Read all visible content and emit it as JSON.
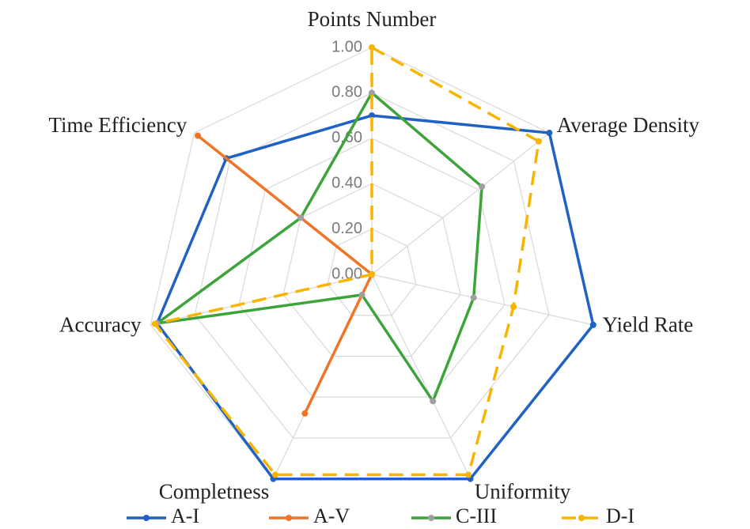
{
  "chart_data": {
    "type": "radar",
    "categories": [
      "Points Number",
      "Average Density",
      "Yield Rate",
      "Uniformity",
      "Completness",
      "Accuracy",
      "Time Efficiency"
    ],
    "series": [
      {
        "name": "A-I",
        "color": "#1f62c4",
        "marker_color": "#1f62c4",
        "line_style": "solid",
        "values": [
          0.7,
          1.0,
          1.0,
          1.0,
          1.0,
          0.97,
          0.82
        ]
      },
      {
        "name": "A-V",
        "color": "#f07426",
        "marker_color": "#f07426",
        "line_style": "solid",
        "values": [
          0,
          0,
          0,
          0,
          0.68,
          0,
          0.98
        ]
      },
      {
        "name": "C-III",
        "color": "#3ca43a",
        "marker_color": "#a0a0a0",
        "line_style": "solid",
        "values": [
          0.8,
          0.62,
          0.46,
          0.62,
          0.1,
          0.97,
          0.4
        ]
      },
      {
        "name": "D-I",
        "color": "#f7b500",
        "marker_color": "#f7b500",
        "line_style": "dashed",
        "values": [
          1.0,
          0.94,
          0.64,
          0.98,
          0.98,
          0.98,
          0
        ]
      }
    ],
    "rlim": [
      0,
      1
    ],
    "rticks": [
      {
        "value": 0,
        "label": "0.00"
      },
      {
        "value": 0.2,
        "label": "0.20"
      },
      {
        "value": 0.4,
        "label": "0.40"
      },
      {
        "value": 0.6,
        "label": "0.60"
      },
      {
        "value": 0.8,
        "label": "0.80"
      },
      {
        "value": 1,
        "label": "1.00"
      }
    ],
    "grid": true,
    "legend": "bottom"
  }
}
